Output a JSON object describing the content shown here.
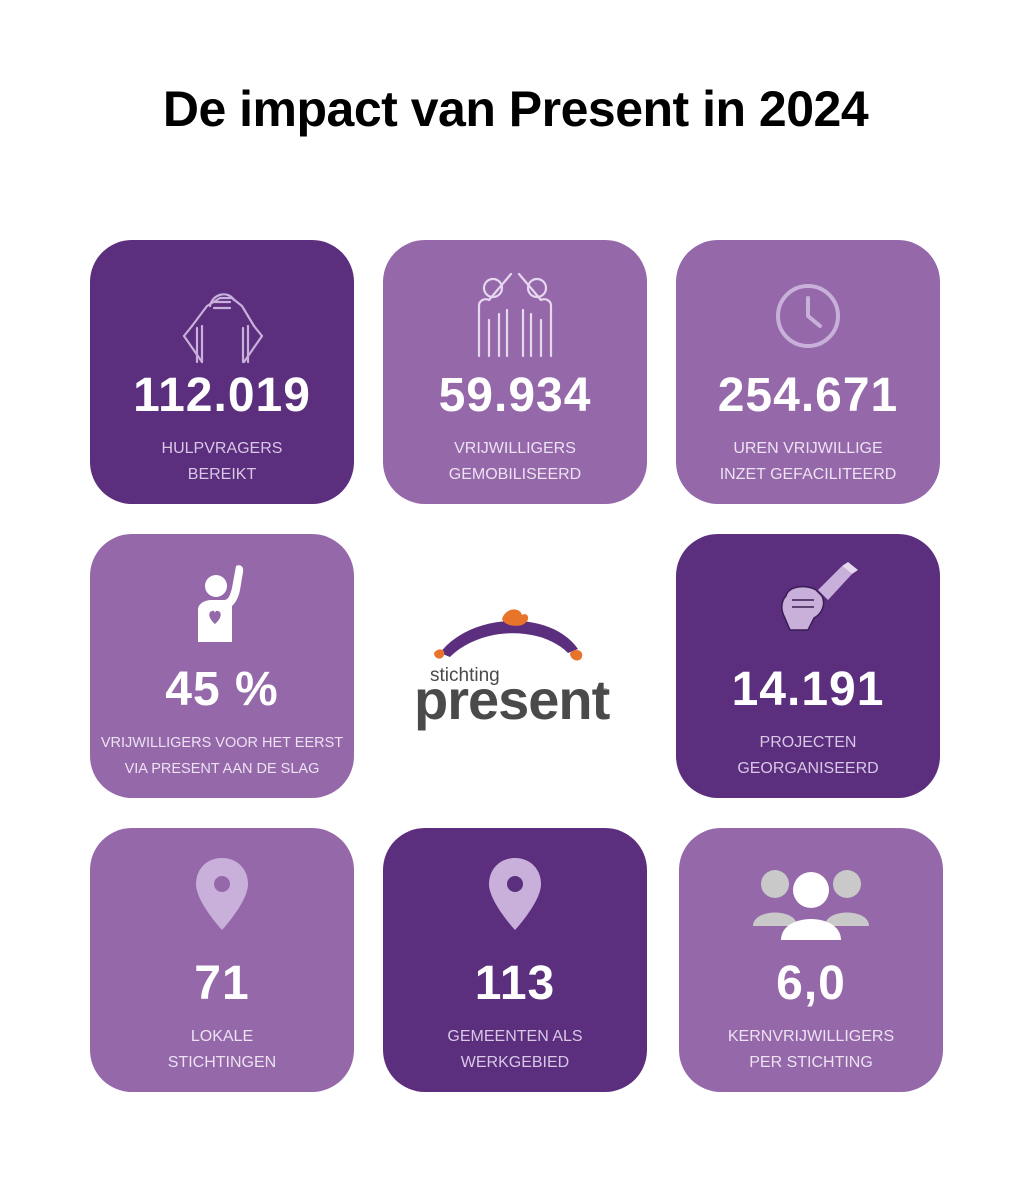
{
  "title": "De impact van Present in 2024",
  "colors": {
    "dark_purple": "#5b2e7e",
    "light_purple": "#9568aa",
    "icon_lilac": "#c8b0da",
    "logo_orange": "#e8742a",
    "logo_grey": "#4a4a4a"
  },
  "cards": [
    {
      "value": "112.019",
      "line1": "HULPVRAGERS",
      "line2": "BEREIKT",
      "icon": "handshake-icon"
    },
    {
      "value": "59.934",
      "line1": "VRIJWILLIGERS",
      "line2": "GEMOBILISEERD",
      "icon": "high-five-icon"
    },
    {
      "value": "254.671",
      "line1": "UREN VRIJWILLIGE",
      "line2": "INZET GEFACILITEERD",
      "icon": "clock-icon"
    },
    {
      "value": "45 %",
      "line1": "VRIJWILLIGERS  VOOR HET EERST",
      "line2": "VIA PRESENT AAN DE SLAG",
      "icon": "volunteer-heart-icon"
    },
    {
      "value": "14.191",
      "line1": "PROJECTEN",
      "line2": "GEORGANISEERD",
      "icon": "paintbrush-fist-icon"
    },
    {
      "value": "71",
      "line1": "LOKALE",
      "line2": "STICHTINGEN",
      "icon": "location-pin-icon"
    },
    {
      "value": "113",
      "line1": "GEMEENTEN ALS",
      "line2": "WERKGEBIED",
      "icon": "location-pin-icon"
    },
    {
      "value": "6,0",
      "line1": "KERNVRIJWILLIGERS",
      "line2": "PER STICHTING",
      "icon": "group-people-icon"
    }
  ],
  "logo": {
    "small": "stichting",
    "big": "present",
    "reg": "®"
  }
}
